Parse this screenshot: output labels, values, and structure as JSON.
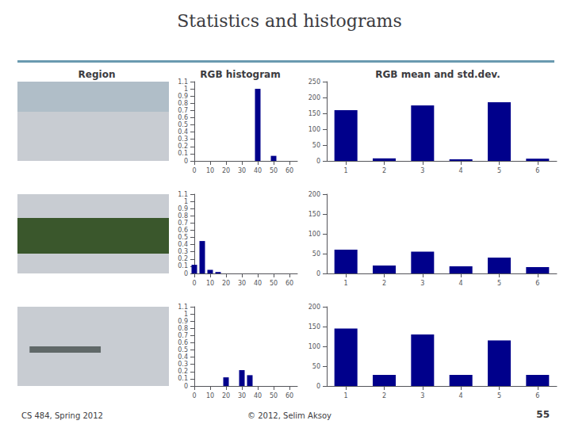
{
  "title": "Statistics and histograms",
  "annotations": [
    "Region",
    "RGB histogram",
    "RGB mean and std.dev.",
    "CS 484, Spring 2012",
    "© 2012, Selim Aksoy",
    "55"
  ],
  "chart_data": [
    {
      "type": "bar",
      "x": [
        40,
        50
      ],
      "values": [
        1.0,
        0.07
      ],
      "color": "#00008B",
      "xlim": [
        0,
        65
      ],
      "xticks": [
        0,
        10,
        20,
        30,
        40,
        50,
        60
      ],
      "ylim": [
        0,
        1.1
      ],
      "yticks": [
        0,
        0.1,
        0.2,
        0.3,
        0.4,
        0.5,
        0.6,
        0.7,
        0.8,
        0.9,
        1,
        1.1
      ],
      "grid": false
    },
    {
      "type": "bar",
      "categories": [
        "1",
        "2",
        "3",
        "4",
        "5",
        "6"
      ],
      "values": [
        160,
        8,
        175,
        5,
        185,
        7
      ],
      "color": "#00008B",
      "ylim": [
        0,
        250
      ],
      "yticks": [
        0,
        50,
        100,
        150,
        200,
        250
      ],
      "grid": false
    },
    {
      "type": "bar",
      "x": [
        0,
        5,
        10,
        15
      ],
      "values": [
        0.12,
        0.45,
        0.05,
        0.02
      ],
      "color": "#00008B",
      "xlim": [
        0,
        65
      ],
      "xticks": [
        0,
        10,
        20,
        30,
        40,
        50,
        60
      ],
      "ylim": [
        0,
        1.1
      ],
      "yticks": [
        0,
        0.1,
        0.2,
        0.3,
        0.4,
        0.5,
        0.6,
        0.7,
        0.8,
        0.9,
        1,
        1.1
      ],
      "grid": false
    },
    {
      "type": "bar",
      "categories": [
        "1",
        "2",
        "3",
        "4",
        "5",
        "6"
      ],
      "values": [
        60,
        20,
        55,
        18,
        40,
        16
      ],
      "color": "#00008B",
      "ylim": [
        0,
        200
      ],
      "yticks": [
        0,
        50,
        100,
        150,
        200
      ],
      "grid": false
    },
    {
      "type": "bar",
      "x": [
        20,
        30,
        35
      ],
      "values": [
        0.12,
        0.22,
        0.15
      ],
      "color": "#00008B",
      "xlim": [
        0,
        65
      ],
      "xticks": [
        0,
        10,
        20,
        30,
        40,
        50,
        60
      ],
      "ylim": [
        0,
        1.1
      ],
      "yticks": [
        0,
        0.1,
        0.2,
        0.3,
        0.4,
        0.5,
        0.6,
        0.7,
        0.8,
        0.9,
        1,
        1.1
      ],
      "grid": false
    },
    {
      "type": "bar",
      "categories": [
        "1",
        "2",
        "3",
        "4",
        "5",
        "6"
      ],
      "values": [
        145,
        28,
        130,
        28,
        115,
        28
      ],
      "color": "#00008B",
      "ylim": [
        0,
        200
      ],
      "yticks": [
        0,
        50,
        100,
        150,
        200
      ],
      "grid": false
    }
  ]
}
